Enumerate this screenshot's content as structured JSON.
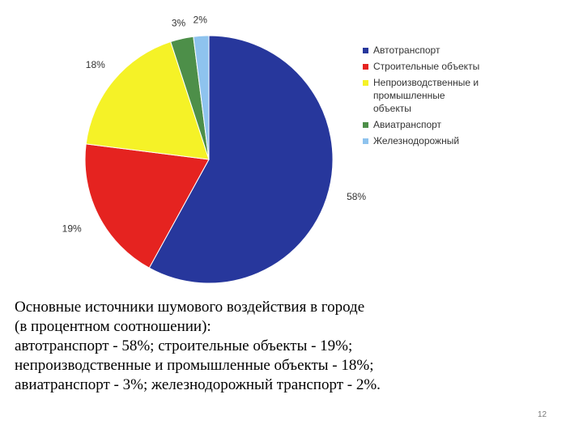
{
  "chart_data": {
    "type": "pie",
    "slices": [
      {
        "label": "Автотранспорт",
        "value": 58,
        "display": "58%",
        "color": "#27379c"
      },
      {
        "label": "Строительные объекты",
        "value": 19,
        "display": "19%",
        "color": "#e52320"
      },
      {
        "label": "Непроизводственные и\nпромышленные\nобъекты",
        "value": 18,
        "display": "18%",
        "color": "#f5f227"
      },
      {
        "label": "Авиатранспорт",
        "value": 3,
        "display": "3%",
        "color": "#4d8f49"
      },
      {
        "label": "Железнодорожный",
        "value": 2,
        "display": "2%",
        "color": "#8ec3ee"
      }
    ],
    "legend_position": "right"
  },
  "caption": {
    "lines": [
      "Основные источники шумового воздействия в городе",
      "(в процентном соотношении):",
      "автотранспорт - 58%; строительные объекты - 19%;",
      "непроизводственные и промышленные объекты - 18%;",
      "авиатранспорт - 3%; железнодорожный транспорт - 2%."
    ]
  },
  "page_number": "12"
}
